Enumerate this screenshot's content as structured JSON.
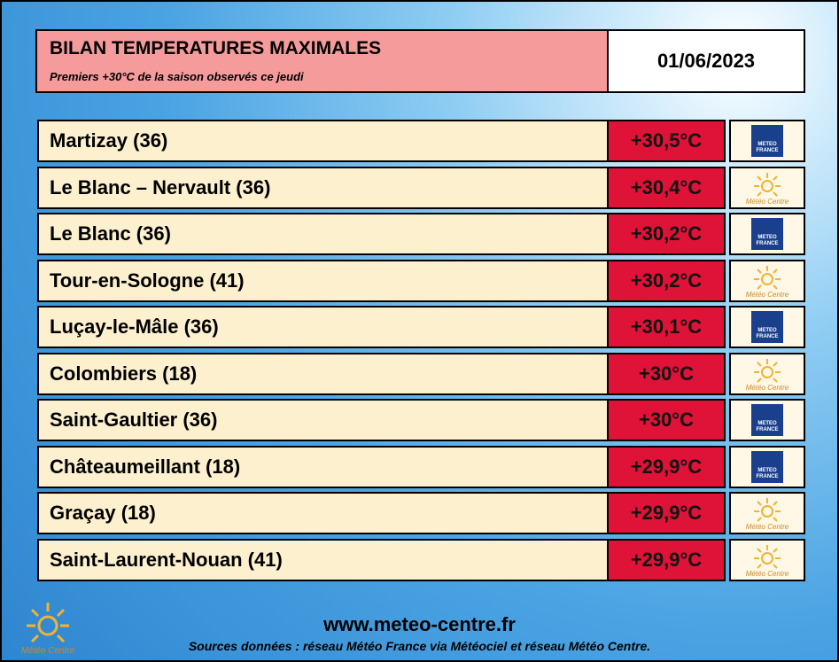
{
  "header": {
    "title": "BILAN TEMPERATURES MAXIMALES",
    "subtitle": "Premiers +30°C de la saison observés ce jeudi",
    "date": "01/06/2023"
  },
  "table": {
    "rows": [
      {
        "station": "Martizay (36)",
        "temperature": "+30,5°C",
        "source": "METEO FRANCE"
      },
      {
        "station": "Le Blanc – Nervault (36)",
        "temperature": "+30,4°C",
        "source": "Météo Centre"
      },
      {
        "station": "Le Blanc (36)",
        "temperature": "+30,2°C",
        "source": "METEO FRANCE"
      },
      {
        "station": "Tour-en-Sologne (41)",
        "temperature": "+30,2°C",
        "source": "Météo Centre"
      },
      {
        "station": "Luçay-le-Mâle (36)",
        "temperature": "+30,1°C",
        "source": "METEO FRANCE"
      },
      {
        "station": "Colombiers (18)",
        "temperature": "+30°C",
        "source": "Météo Centre"
      },
      {
        "station": "Saint-Gaultier (36)",
        "temperature": "+30°C",
        "source": "METEO FRANCE"
      },
      {
        "station": "Châteaumeillant (18)",
        "temperature": "+29,9°C",
        "source": "METEO FRANCE"
      },
      {
        "station": "Graçay (18)",
        "temperature": "+29,9°C",
        "source": "Météo Centre"
      },
      {
        "station": "Saint-Laurent-Nouan (41)",
        "temperature": "+29,9°C",
        "source": "Météo Centre"
      }
    ]
  },
  "footer": {
    "logo": "Météo Centre",
    "url": "www.meteo-centre.fr",
    "sources": "Sources données : réseau Météo France via Météociel et réseau Météo Centre."
  }
}
